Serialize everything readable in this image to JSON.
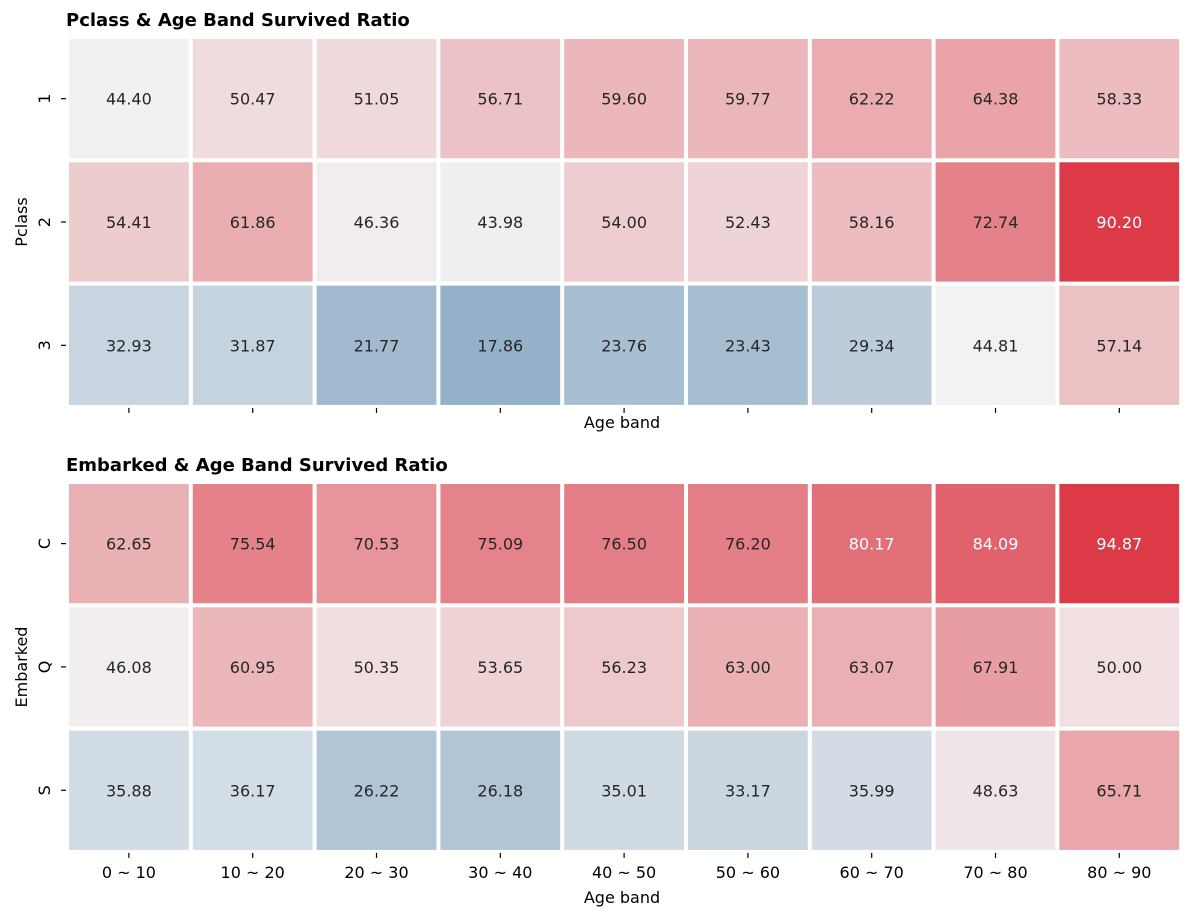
{
  "chart_data": [
    {
      "type": "heatmap",
      "title": "Pclass & Age Band Survived Ratio",
      "xlabel": "Age band",
      "ylabel": "Pclass",
      "rows": [
        "1",
        "2",
        "3"
      ],
      "columns": [
        "0 ~ 10",
        "10 ~ 20",
        "20 ~ 30",
        "30 ~ 40",
        "40 ~ 50",
        "50 ~ 60",
        "60 ~ 70",
        "70 ~ 80",
        "80 ~ 90"
      ],
      "show_xticklabels": false,
      "values": [
        [
          44.4,
          50.47,
          51.05,
          56.71,
          59.6,
          59.77,
          62.22,
          64.38,
          58.33
        ],
        [
          54.41,
          61.86,
          46.36,
          43.98,
          54.0,
          52.43,
          58.16,
          72.74,
          90.2
        ],
        [
          32.93,
          31.87,
          21.77,
          17.86,
          23.76,
          23.43,
          29.34,
          44.81,
          57.14
        ]
      ],
      "value_labels": [
        [
          "44.40",
          "50.47",
          "51.05",
          "56.71",
          "59.60",
          "59.77",
          "62.22",
          "64.38",
          "58.33"
        ],
        [
          "54.41",
          "61.86",
          "46.36",
          "43.98",
          "54.00",
          "52.43",
          "58.16",
          "72.74",
          "90.20"
        ],
        [
          "32.93",
          "31.87",
          "21.77",
          "17.86",
          "23.76",
          "23.43",
          "29.34",
          "44.81",
          "57.14"
        ]
      ],
      "colormap": {
        "low": "#94b1c9",
        "mid": "#f2f2f2",
        "high": "#dc3a47",
        "center": 45,
        "vmin": 17.86,
        "vmax": 90.2
      },
      "colorbar": false,
      "grid": false
    },
    {
      "type": "heatmap",
      "title": "Embarked & Age Band Survived Ratio",
      "xlabel": "Age band",
      "ylabel": "Embarked",
      "rows": [
        "C",
        "Q",
        "S"
      ],
      "columns": [
        "0 ~ 10",
        "10 ~ 20",
        "20 ~ 30",
        "30 ~ 40",
        "40 ~ 50",
        "50 ~ 60",
        "60 ~ 70",
        "70 ~ 80",
        "80 ~ 90"
      ],
      "show_xticklabels": true,
      "values": [
        [
          62.65,
          75.54,
          70.53,
          75.09,
          76.5,
          76.2,
          80.17,
          84.09,
          94.87
        ],
        [
          46.08,
          60.95,
          50.35,
          53.65,
          56.23,
          63.0,
          63.07,
          67.91,
          50.0
        ],
        [
          35.88,
          36.17,
          26.22,
          26.18,
          35.01,
          33.17,
          35.99,
          48.63,
          65.71
        ]
      ],
      "value_labels": [
        [
          "62.65",
          "75.54",
          "70.53",
          "75.09",
          "76.50",
          "76.20",
          "80.17",
          "84.09",
          "94.87"
        ],
        [
          "46.08",
          "60.95",
          "50.35",
          "53.65",
          "56.23",
          "63.00",
          "63.07",
          "67.91",
          "50.00"
        ],
        [
          "35.88",
          "36.17",
          "26.22",
          "26.18",
          "35.01",
          "33.17",
          "35.99",
          "48.63",
          "65.71"
        ]
      ],
      "colormap": {
        "low": "#94b1c9",
        "mid": "#f2f2f2",
        "high": "#dc3a47",
        "center": 45,
        "vmin": 17.86,
        "vmax": 94.87
      },
      "colorbar": false,
      "grid": false
    }
  ]
}
